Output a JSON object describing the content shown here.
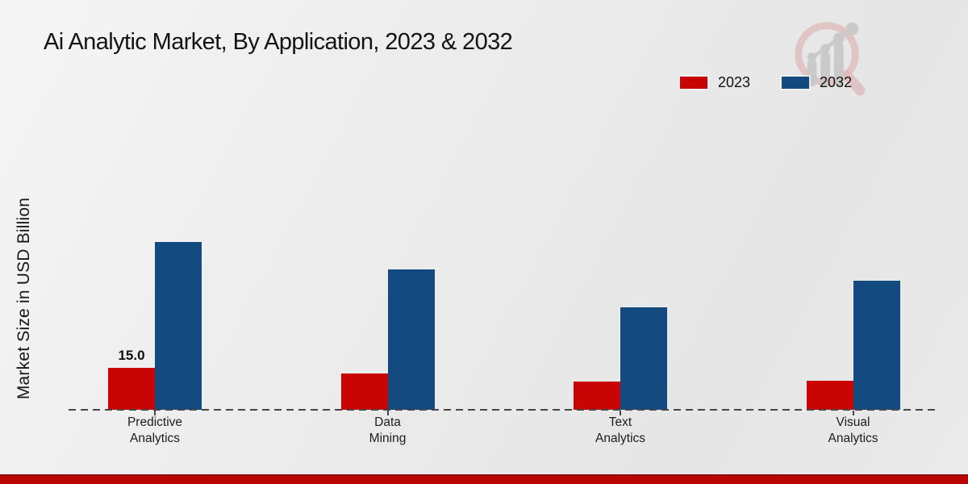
{
  "title": "Ai Analytic Market, By Application, 2023 & 2032",
  "y_axis_label": "Market Size in USD Billion",
  "legend": {
    "position": "top-right",
    "items": [
      {
        "label": "2023",
        "color": "#c90404"
      },
      {
        "label": "2032",
        "color": "#134b80"
      }
    ]
  },
  "branding": {
    "logo": "magnifier-bar-chart-watermark",
    "logo_ring_color": "#dfb9ba",
    "logo_glyph_color": "#c9c9c9"
  },
  "accent": {
    "bottom_bar_color": "#b90404",
    "bottom_bar_edge_color": "#8f0707"
  },
  "axis": {
    "baseline_style": "dashed",
    "baseline_color": "#474747"
  },
  "chart_data": {
    "type": "bar",
    "title": "Ai Analytic Market, By Application, 2023 & 2032",
    "xlabel": "",
    "ylabel": "Market Size in USD Billion",
    "categories": [
      "Predictive\nAnalytics",
      "Data\nMining",
      "Text\nAnalytics",
      "Visual\nAnalytics"
    ],
    "series": [
      {
        "name": "2023",
        "color": "#c90404",
        "values": [
          15.0,
          13.0,
          10.0,
          10.5
        ],
        "data_labels": [
          "15.0",
          "",
          "",
          ""
        ]
      },
      {
        "name": "2032",
        "color": "#134b80",
        "values": [
          60.0,
          50.0,
          36.5,
          46.0
        ],
        "data_labels": [
          "",
          "",
          "",
          ""
        ]
      }
    ],
    "ylim": [
      0,
      65
    ],
    "grid": false,
    "y_axis_ticks_visible": false,
    "legend_position": "top-right"
  }
}
